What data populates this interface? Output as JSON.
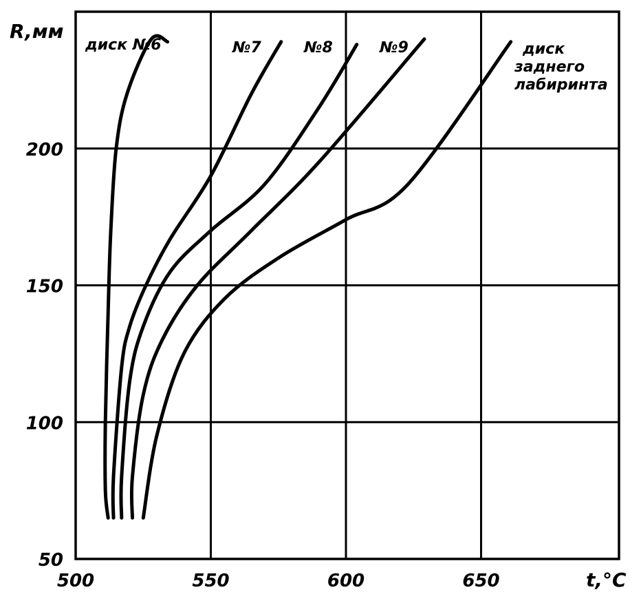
{
  "chart_data": {
    "type": "line",
    "xlabel": "t,°C",
    "ylabel": "R,мм",
    "xlim": [
      500,
      650
    ],
    "ylim": [
      50,
      250
    ],
    "grid": true,
    "x_ticks": [
      "500",
      "550",
      "600",
      "650"
    ],
    "y_ticks": [
      "50",
      "100",
      "150",
      "200"
    ],
    "series": [
      {
        "name": "диск №6",
        "points": [
          [
            512,
            65
          ],
          [
            511,
            75
          ],
          [
            511,
            100
          ],
          [
            512,
            140
          ],
          [
            513,
            170
          ],
          [
            515,
            200
          ],
          [
            519,
            220
          ],
          [
            528,
            240
          ],
          [
            534,
            239
          ]
        ]
      },
      {
        "name": "№7",
        "points": [
          [
            514,
            65
          ],
          [
            514,
            80
          ],
          [
            517,
            120
          ],
          [
            520,
            135
          ],
          [
            526,
            150
          ],
          [
            535,
            167
          ],
          [
            550,
            190
          ],
          [
            565,
            220
          ],
          [
            576,
            239
          ]
        ]
      },
      {
        "name": "№8",
        "points": [
          [
            517,
            65
          ],
          [
            517,
            80
          ],
          [
            520,
            115
          ],
          [
            525,
            135
          ],
          [
            535,
            155
          ],
          [
            550,
            170
          ],
          [
            570,
            187
          ],
          [
            590,
            215
          ],
          [
            604,
            238
          ]
        ]
      },
      {
        "name": "№9",
        "points": [
          [
            521,
            65
          ],
          [
            521,
            80
          ],
          [
            525,
            110
          ],
          [
            532,
            130
          ],
          [
            545,
            150
          ],
          [
            565,
            170
          ],
          [
            590,
            195
          ],
          [
            629,
            240
          ]
        ]
      },
      {
        "name": "диск заднего лабиринта",
        "points": [
          [
            525,
            65
          ],
          [
            530,
            95
          ],
          [
            540,
            125
          ],
          [
            555,
            145
          ],
          [
            575,
            160
          ],
          [
            600,
            174
          ],
          [
            623,
            187
          ],
          [
            661,
            239
          ]
        ]
      }
    ]
  }
}
